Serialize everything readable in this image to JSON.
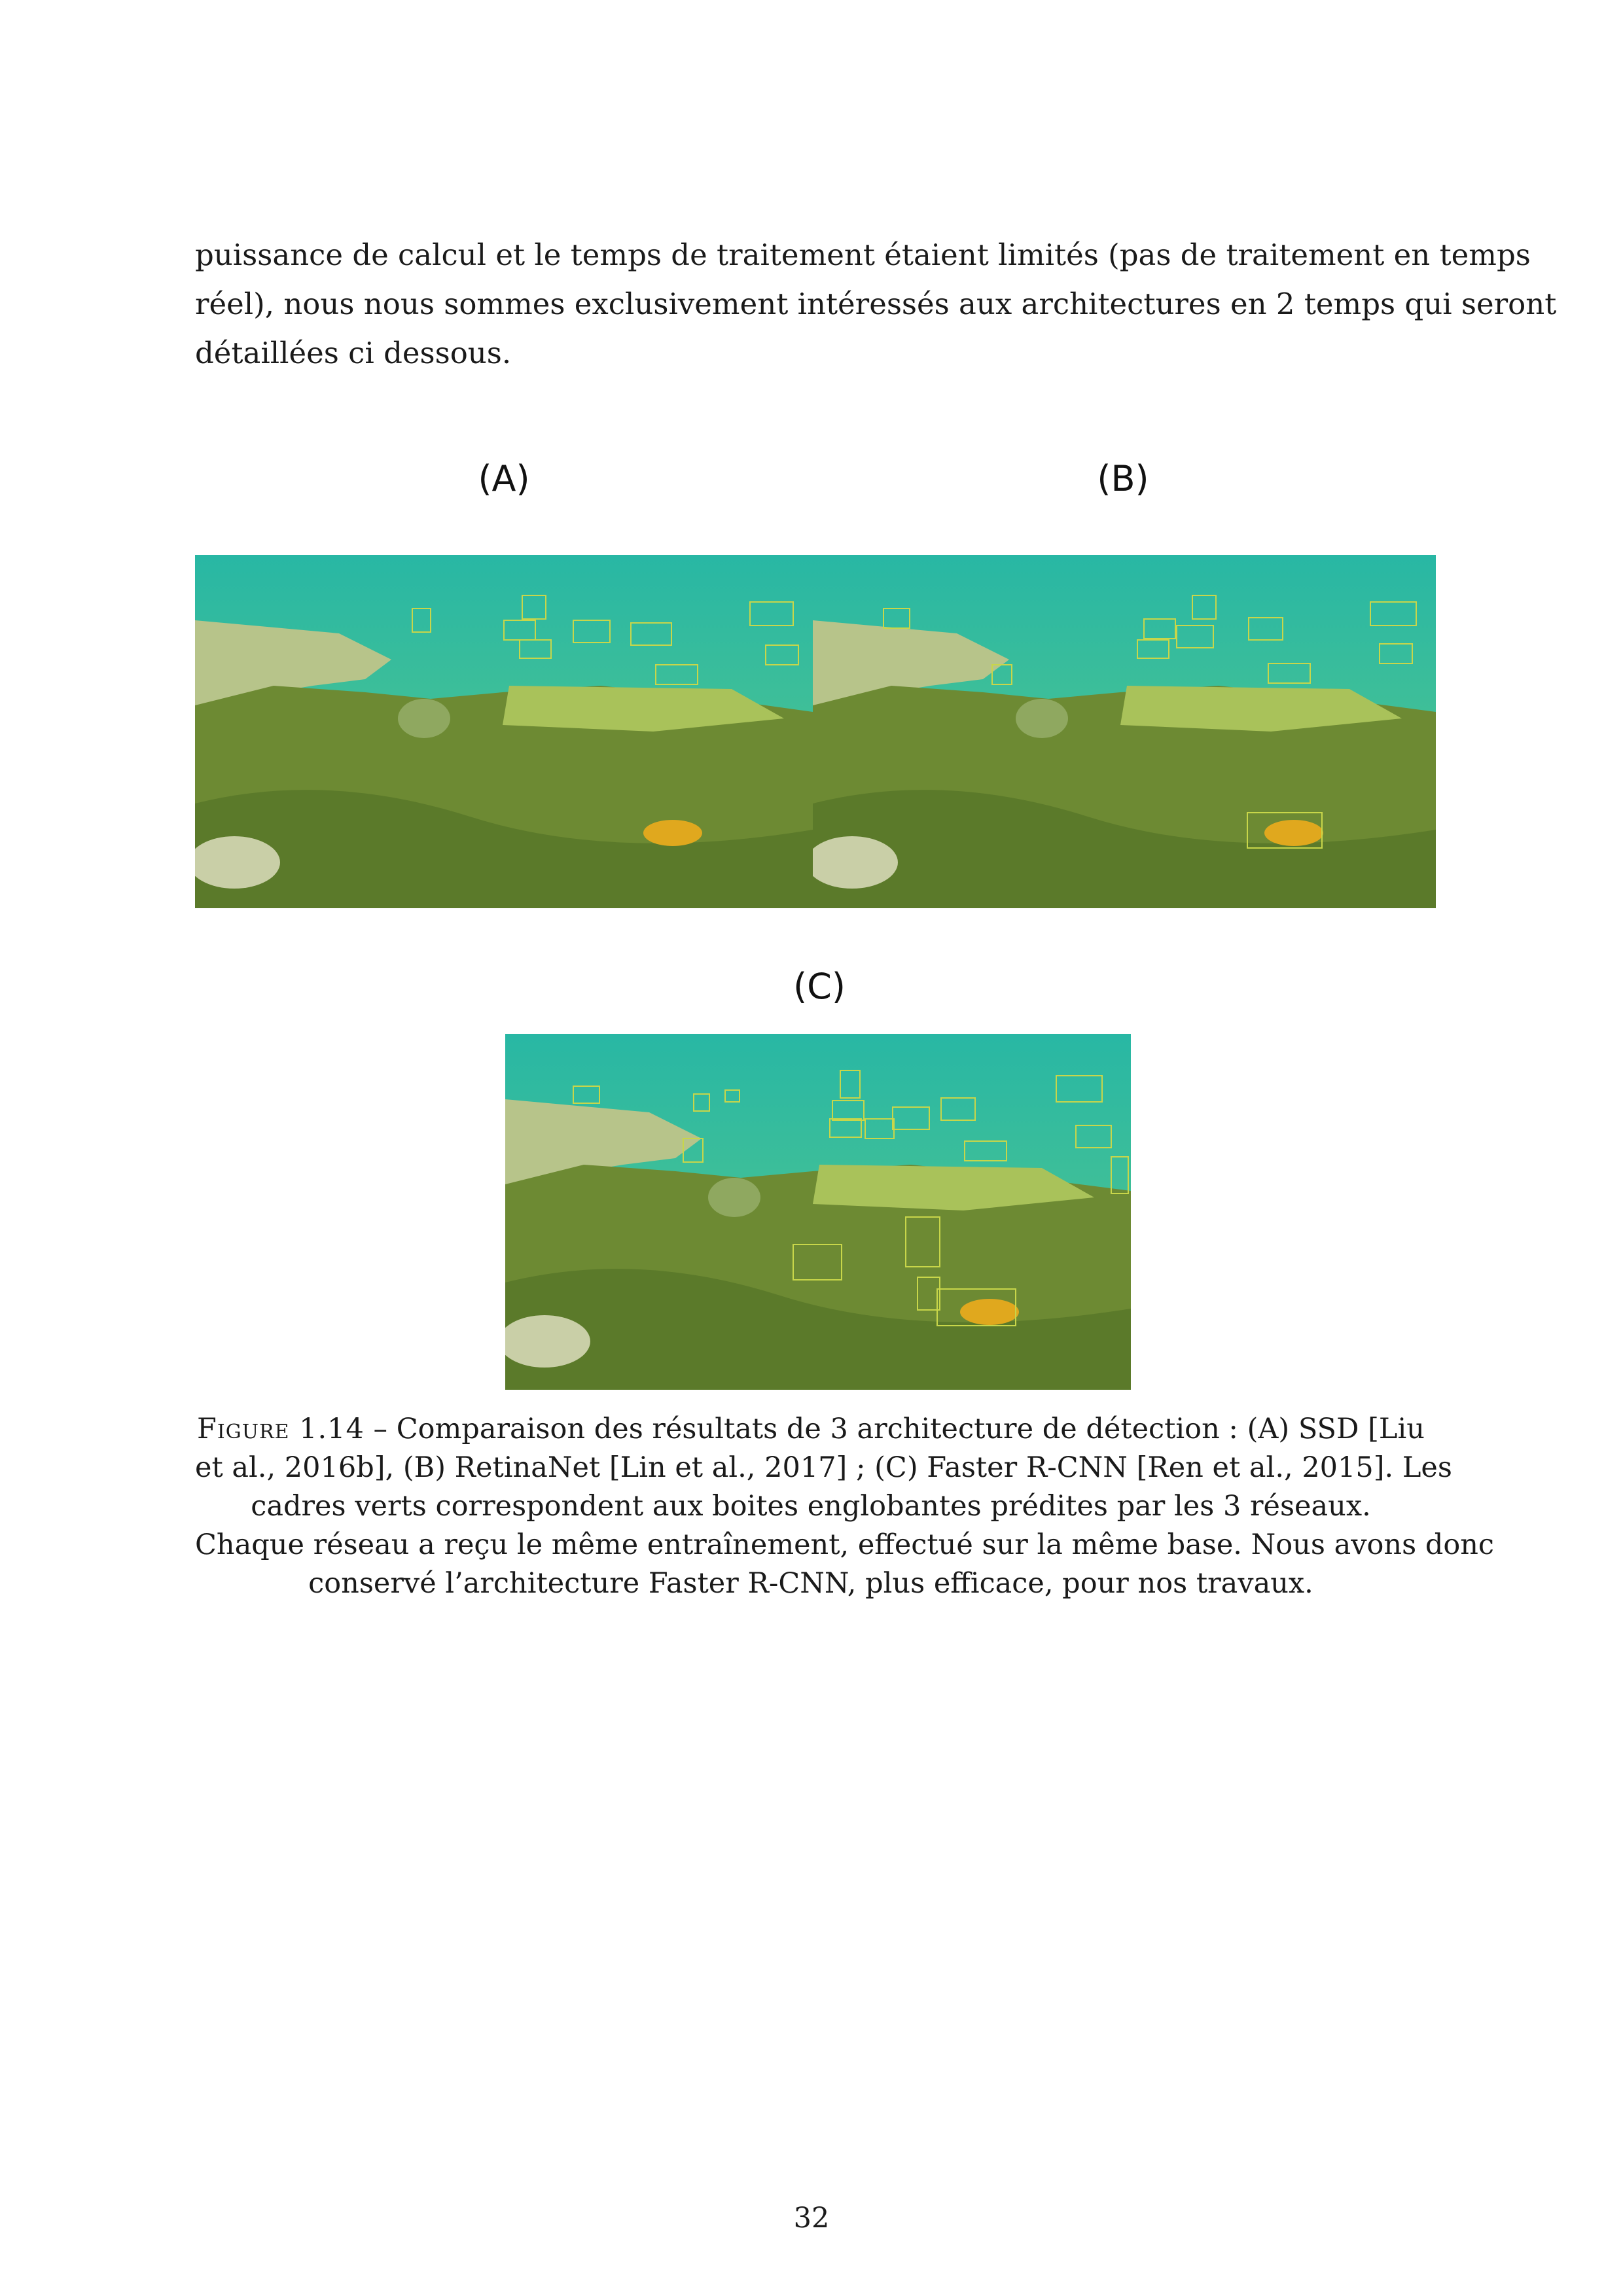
{
  "body_text": {
    "lines": [
      "puissance de calcul et le temps de traitement étaient limités (pas de traitement en temps",
      "réel), nous nous sommes exclusivement intéressés aux architectures en 2 temps qui seront",
      "détaillées ci dessous."
    ]
  },
  "figure": {
    "panels": [
      {
        "label": "(A)"
      },
      {
        "label": "(B)"
      },
      {
        "label": "(C)"
      }
    ],
    "caption": {
      "figure_label": "Figure 1.14",
      "separator": " – ",
      "lines": [
        "Comparaison des résultats de 3 architecture de détection : (A) SSD [Liu",
        "et al., 2016b], (B) RetinaNet [Lin et al., 2017] ; (C) Faster R-CNN [Ren et al., 2015]. Les",
        "cadres verts correspondent aux boites englobantes prédites par les 3 réseaux.",
        "Chaque réseau a reçu le même entraînement, effectué sur la même base. Nous avons donc",
        "conservé l’architecture Faster R-CNN, plus efficace, pour nos travaux."
      ]
    },
    "box_color": "#c8d64a",
    "water_color": "#2fb8a0",
    "reef_color": "#7f9a3a"
  },
  "page_number": "32"
}
